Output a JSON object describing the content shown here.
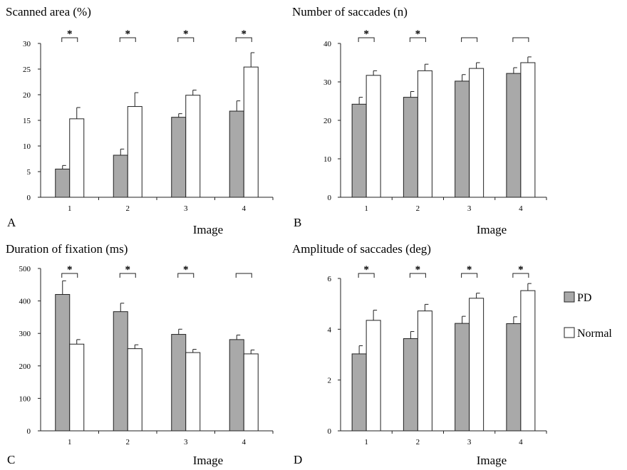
{
  "colors": {
    "pd": "#a9a9a9",
    "normal": "#ffffff",
    "stroke": "#222222"
  },
  "legend": {
    "items": [
      {
        "label": "PD",
        "color": "#a9a9a9"
      },
      {
        "label": "Normal",
        "color": "#ffffff"
      }
    ],
    "position": "right"
  },
  "chart_data": [
    {
      "type": "bar",
      "letter": "A",
      "title": "Scanned area (%)",
      "xlabel": "Image",
      "ylabel": "",
      "categories": [
        "1",
        "2",
        "3",
        "4"
      ],
      "ylim": [
        0,
        30
      ],
      "yticks": [
        "0",
        "5",
        "10",
        "15",
        "20",
        "25",
        "30"
      ],
      "series": [
        {
          "name": "PD",
          "values": [
            5.5,
            8.2,
            15.6,
            16.8
          ],
          "errors": [
            0.7,
            1.2,
            0.7,
            2.0
          ]
        },
        {
          "name": "Normal",
          "values": [
            15.3,
            17.7,
            19.9,
            25.4
          ],
          "errors": [
            2.2,
            2.7,
            1.0,
            2.8
          ]
        }
      ],
      "significance": [
        "*",
        "*",
        "*",
        "*"
      ]
    },
    {
      "type": "bar",
      "letter": "B",
      "title": "Number of saccades (n)",
      "xlabel": "Image",
      "ylabel": "",
      "categories": [
        "1",
        "2",
        "3",
        "4"
      ],
      "ylim": [
        0,
        40
      ],
      "yticks": [
        "0",
        "10",
        "20",
        "30",
        "40"
      ],
      "series": [
        {
          "name": "PD",
          "values": [
            24.2,
            26.0,
            30.2,
            32.2
          ],
          "errors": [
            1.8,
            1.5,
            1.7,
            1.5
          ]
        },
        {
          "name": "Normal",
          "values": [
            31.7,
            32.9,
            33.5,
            35.0
          ],
          "errors": [
            1.2,
            1.7,
            1.5,
            1.5
          ]
        }
      ],
      "significance": [
        "*",
        "*",
        "",
        ""
      ]
    },
    {
      "type": "bar",
      "letter": "C",
      "title": "Duration of fixation (ms)",
      "xlabel": "Image",
      "ylabel": "",
      "categories": [
        "1",
        "2",
        "3",
        "4"
      ],
      "ylim": [
        0,
        500
      ],
      "yticks": [
        "0",
        "100",
        "200",
        "300",
        "400",
        "500"
      ],
      "series": [
        {
          "name": "PD",
          "values": [
            420,
            367,
            297,
            281
          ],
          "errors": [
            42,
            26,
            16,
            14
          ]
        },
        {
          "name": "Normal",
          "values": [
            267,
            253,
            241,
            237
          ],
          "errors": [
            14,
            12,
            10,
            12
          ]
        }
      ],
      "significance": [
        "*",
        "*",
        "*",
        ""
      ]
    },
    {
      "type": "bar",
      "letter": "D",
      "title": "Amplitude of saccades (deg)",
      "xlabel": "Image",
      "ylabel": "",
      "categories": [
        "1",
        "2",
        "3",
        "4"
      ],
      "ylim": [
        0,
        6
      ],
      "yticks": [
        "0",
        "2",
        "4",
        "6"
      ],
      "series": [
        {
          "name": "PD",
          "values": [
            3.03,
            3.63,
            4.23,
            4.22
          ],
          "errors": [
            0.32,
            0.28,
            0.28,
            0.27
          ]
        },
        {
          "name": "Normal",
          "values": [
            4.35,
            4.72,
            5.22,
            5.52
          ],
          "errors": [
            0.4,
            0.26,
            0.2,
            0.28
          ]
        }
      ],
      "significance": [
        "*",
        "*",
        "*",
        "*"
      ]
    }
  ]
}
